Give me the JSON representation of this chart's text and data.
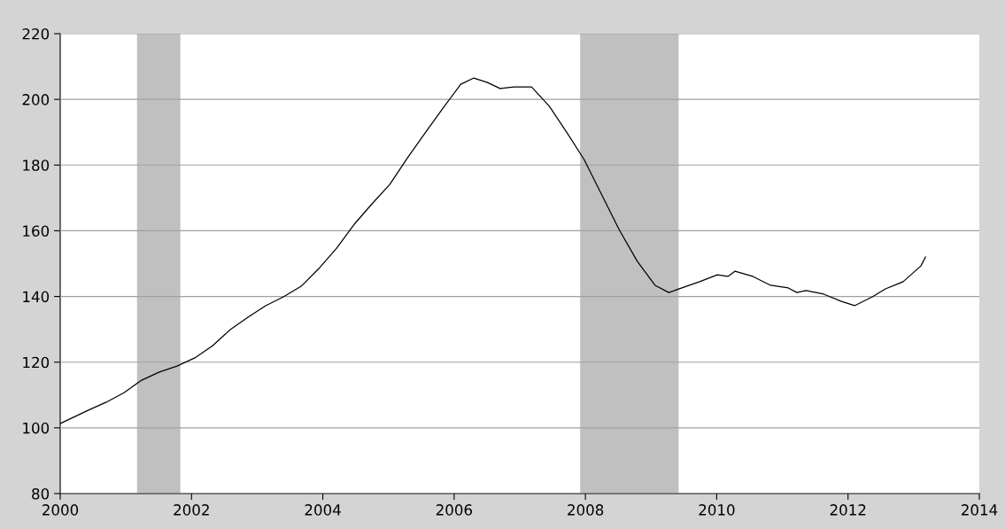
{
  "chart_data": {
    "type": "line",
    "xlim": [
      2000,
      2014
    ],
    "xticks": [
      2000,
      2002,
      2004,
      2006,
      2008,
      2010,
      2012,
      2014
    ],
    "ylim": [
      80,
      220
    ],
    "yticks": [
      80,
      100,
      120,
      140,
      160,
      180,
      200,
      220
    ],
    "grid": "y",
    "legend": false,
    "marker": "none",
    "line_style": "solid",
    "series": [
      {
        "color": "#000000",
        "x": [
          2000.0,
          2000.43,
          2000.7,
          2000.97,
          2001.24,
          2001.51,
          2001.78,
          2002.05,
          2002.32,
          2002.59,
          2002.86,
          2003.13,
          2003.4,
          2003.67,
          2003.94,
          2004.21,
          2004.48,
          2004.75,
          2005.02,
          2005.29,
          2005.56,
          2005.83,
          2006.1,
          2006.3,
          2006.5,
          2006.7,
          2006.91,
          2007.18,
          2007.45,
          2007.72,
          2007.98,
          2008.25,
          2008.52,
          2008.79,
          2009.06,
          2009.27,
          2009.47,
          2009.74,
          2010.01,
          2010.17,
          2010.28,
          2010.55,
          2010.82,
          2011.09,
          2011.22,
          2011.36,
          2011.63,
          2011.9,
          2012.1,
          2012.37,
          2012.57,
          2012.84,
          2013.11,
          2013.18
        ],
        "values": [
          101.3,
          105.4,
          107.8,
          110.7,
          114.5,
          117,
          118.8,
          121.3,
          125,
          129.9,
          133.7,
          137.2,
          139.9,
          143.1,
          148.5,
          154.7,
          162,
          168.2,
          174.1,
          182.2,
          189.8,
          197.3,
          204.6,
          206.5,
          205.2,
          203.3,
          203.8,
          203.8,
          197.9,
          189.8,
          181.7,
          170.9,
          160.1,
          150.7,
          143.4,
          141.2,
          142.6,
          144.5,
          146.6,
          146.1,
          147.7,
          146.1,
          143.4,
          142.6,
          141.2,
          141.8,
          140.7,
          138.5,
          137.2,
          139.9,
          142.3,
          144.5,
          149.3,
          152
        ]
      }
    ],
    "bands": [
      {
        "axis": "x",
        "from": 2001.17,
        "to": 2001.83,
        "color": "#c0c0c0"
      },
      {
        "axis": "x",
        "from": 2007.92,
        "to": 2009.42,
        "color": "#c0c0c0"
      }
    ]
  }
}
